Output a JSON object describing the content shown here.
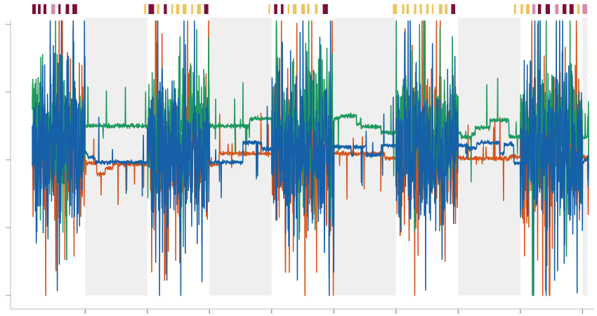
{
  "chart_data": {
    "type": "line",
    "title": "",
    "xlabel": "",
    "ylabel": "",
    "xlim": [
      -0.2,
      9.12
    ],
    "ylim": [
      -2.2,
      2.1
    ],
    "x_ticks": [
      1,
      2,
      3,
      4,
      5,
      6,
      7,
      8,
      9
    ],
    "y_ticks": [
      -2,
      -1,
      0,
      1,
      2
    ],
    "tick_labels_shown": false,
    "grid": false,
    "signal_x_range": [
      0.15,
      9.1
    ],
    "shaded_x_ranges": [
      [
        1,
        2
      ],
      [
        3,
        4
      ],
      [
        5,
        6
      ],
      [
        7,
        8
      ],
      [
        9,
        9.08
      ]
    ],
    "shade_color": "#efefef",
    "series": [
      {
        "color": "#D95319",
        "baseline_active": 0.1,
        "baseline_rest": -0.05,
        "amplitude_active": 1.6
      },
      {
        "color": "#1E9A5C",
        "baseline_active": 0.5,
        "baseline_rest": 0.5,
        "amplitude_active": 1.3
      },
      {
        "color": "#1560A8",
        "baseline_active": 0.1,
        "baseline_rest": 0.1,
        "amplitude_active": 1.8
      }
    ],
    "event_bar_groups": [
      [
        0.15,
        0.95
      ],
      [
        1.95,
        2.95
      ],
      [
        3.95,
        4.95
      ],
      [
        5.95,
        6.95
      ],
      [
        7.9,
        9.1
      ]
    ],
    "event_colors": {
      "minor": "#EEC35E",
      "major": "#7D0F35",
      "other": "#D98AAE"
    }
  }
}
